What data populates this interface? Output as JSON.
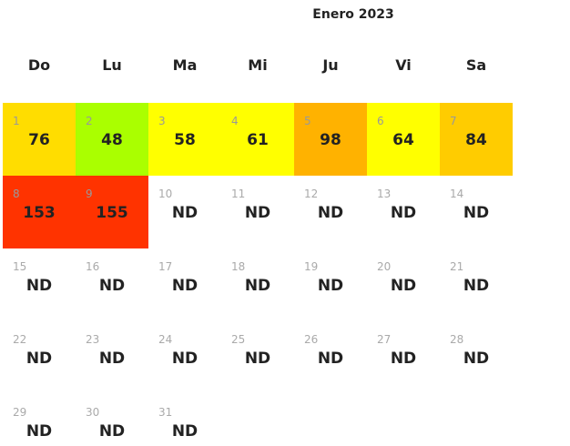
{
  "title": "Enero 2023",
  "weekdays": [
    "Do",
    "Lu",
    "Ma",
    "Mi",
    "Ju",
    "Vi",
    "Sa"
  ],
  "days": [
    {
      "day": 1,
      "value": 76,
      "color": "#ffdd00"
    },
    {
      "day": 2,
      "value": 48,
      "color": "#aaff00"
    },
    {
      "day": 3,
      "value": 58,
      "color": "#ffff00"
    },
    {
      "day": 4,
      "value": 61,
      "color": "#ffff00"
    },
    {
      "day": 5,
      "value": 98,
      "color": "#ffb200"
    },
    {
      "day": 6,
      "value": 64,
      "color": "#ffff00"
    },
    {
      "day": 7,
      "value": 84,
      "color": "#ffcc00"
    },
    {
      "day": 8,
      "value": 153,
      "color": "#ff3300"
    },
    {
      "day": 9,
      "value": 155,
      "color": "#ff3300"
    },
    {
      "day": 10,
      "value": "ND"
    },
    {
      "day": 11,
      "value": "ND"
    },
    {
      "day": 12,
      "value": "ND"
    },
    {
      "day": 13,
      "value": "ND"
    },
    {
      "day": 14,
      "value": "ND"
    },
    {
      "day": 15,
      "value": "ND"
    },
    {
      "day": 16,
      "value": "ND"
    },
    {
      "day": 17,
      "value": "ND"
    },
    {
      "day": 18,
      "value": "ND"
    },
    {
      "day": 19,
      "value": "ND"
    },
    {
      "day": 20,
      "value": "ND"
    },
    {
      "day": 21,
      "value": "ND"
    },
    {
      "day": 22,
      "value": "ND"
    },
    {
      "day": 23,
      "value": "ND"
    },
    {
      "day": 24,
      "value": "ND"
    },
    {
      "day": 25,
      "value": "ND"
    },
    {
      "day": 26,
      "value": "ND"
    },
    {
      "day": 27,
      "value": "ND"
    },
    {
      "day": 28,
      "value": "ND"
    },
    {
      "day": 29,
      "value": "ND"
    },
    {
      "day": 30,
      "value": "ND"
    },
    {
      "day": 31,
      "value": "ND"
    }
  ]
}
